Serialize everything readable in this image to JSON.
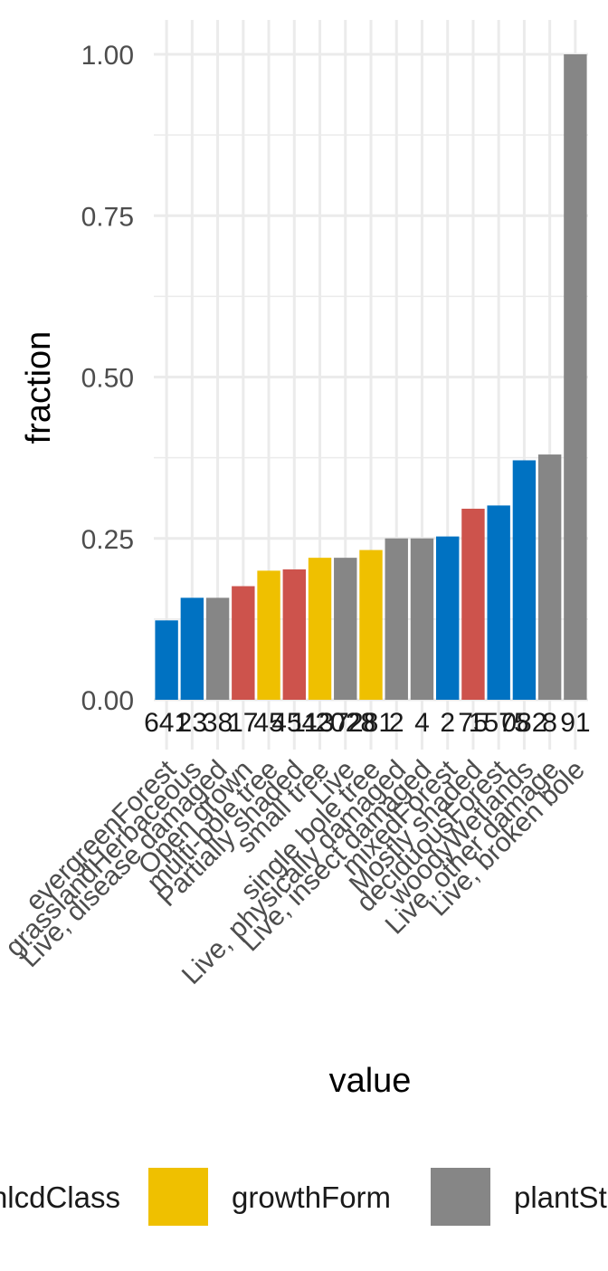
{
  "chart_data": {
    "type": "bar",
    "xlabel": "value",
    "ylabel": "fraction",
    "ylim": [
      0,
      1.05
    ],
    "yticks": [
      "0.00",
      "0.25",
      "0.50",
      "0.75",
      "1.00"
    ],
    "ytick_values": [
      0,
      0.25,
      0.5,
      0.75,
      1.0
    ],
    "grid": true,
    "legend_position": "bottom",
    "series_colors": {
      "nlcdClass": "#0072c2",
      "growthForm": "#efc000",
      "plantStatus": "#868686",
      "canopyPosition": "#cd534c"
    },
    "legend": [
      {
        "key": "nlcdClass",
        "label": "nlcdClass"
      },
      {
        "key": "growthForm",
        "label": "growthForm"
      },
      {
        "key": "plantStatus",
        "label": "plantSt"
      }
    ],
    "bars": [
      {
        "category": "evergreenForest",
        "value": 0.123,
        "label": "641",
        "group": "nlcdClass"
      },
      {
        "category": "grasslandHerbaceous",
        "value": 0.158,
        "label": "23",
        "group": "nlcdClass"
      },
      {
        "category": "Live, disease damaged",
        "value": 0.158,
        "label": "38",
        "group": "plantStatus"
      },
      {
        "category": "Open grown",
        "value": 0.176,
        "label": "17",
        "group": "canopyPosition"
      },
      {
        "category": "multi-bole tree",
        "value": 0.2,
        "label": "45",
        "group": "growthForm"
      },
      {
        "category": "Partially shaded",
        "value": 0.202,
        "label": "454",
        "group": "canopyPosition"
      },
      {
        "category": "small tree",
        "value": 0.22,
        "label": "1137",
        "group": "growthForm"
      },
      {
        "category": "Live",
        "value": 0.22,
        "label": "2028",
        "group": "plantStatus"
      },
      {
        "category": "single bole tree",
        "value": 0.232,
        "label": "281",
        "group": "growthForm"
      },
      {
        "category": "Live, physically damaged",
        "value": 0.25,
        "label": "2",
        "group": "plantStatus"
      },
      {
        "category": "Live, insect damaged",
        "value": 0.25,
        "label": "4",
        "group": "plantStatus"
      },
      {
        "category": "mixedForest",
        "value": 0.253,
        "label": "2",
        "group": "nlcdClass"
      },
      {
        "category": "Mostly shaded",
        "value": 0.296,
        "label": "75",
        "group": "canopyPosition"
      },
      {
        "category": "deciduousForest",
        "value": 0.301,
        "label": "1575",
        "group": "nlcdClass"
      },
      {
        "category": "woodyWetlands",
        "value": 0.371,
        "label": "082",
        "group": "nlcdClass"
      },
      {
        "category": "Live, other damage",
        "value": 0.38,
        "label": "8",
        "group": "plantStatus"
      },
      {
        "category": "Live, broken bole",
        "value": 1.0,
        "label": "91",
        "group": "plantStatus"
      }
    ]
  }
}
